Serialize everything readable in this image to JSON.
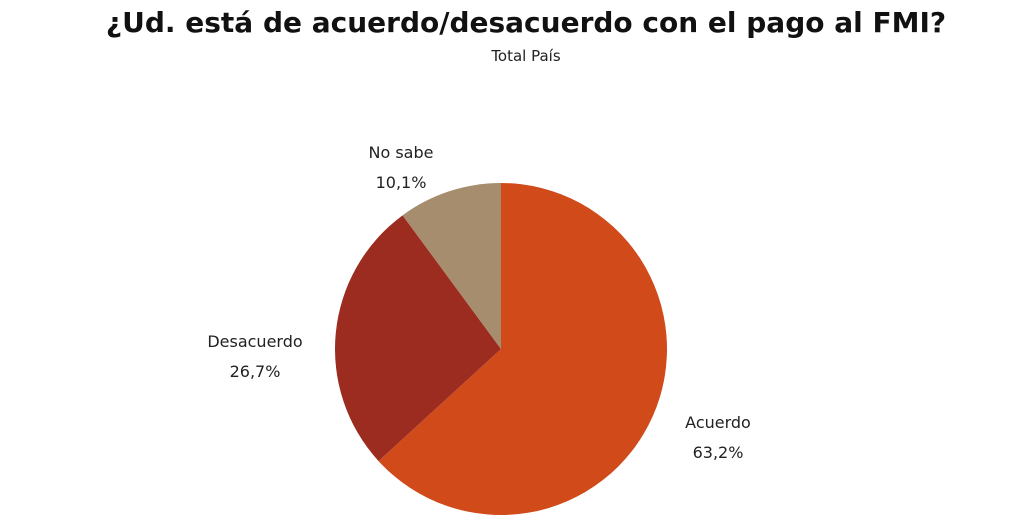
{
  "chart_data": {
    "type": "pie",
    "title": "¿Ud. está de acuerdo/desacuerdo con el pago al FMI?",
    "subtitle": "Total País",
    "slices": [
      {
        "label": "Acuerdo",
        "value": 63.2,
        "value_label": "63,2%",
        "color": "#d04a1a"
      },
      {
        "label": "Desacuerdo",
        "value": 26.7,
        "value_label": "26,7%",
        "color": "#9b2c1f"
      },
      {
        "label": "No sabe",
        "value": 10.1,
        "value_label": "10,1%",
        "color": "#a58d6e"
      }
    ],
    "start_angle": "12 o'clock",
    "direction": "clockwise",
    "legend": "none"
  }
}
